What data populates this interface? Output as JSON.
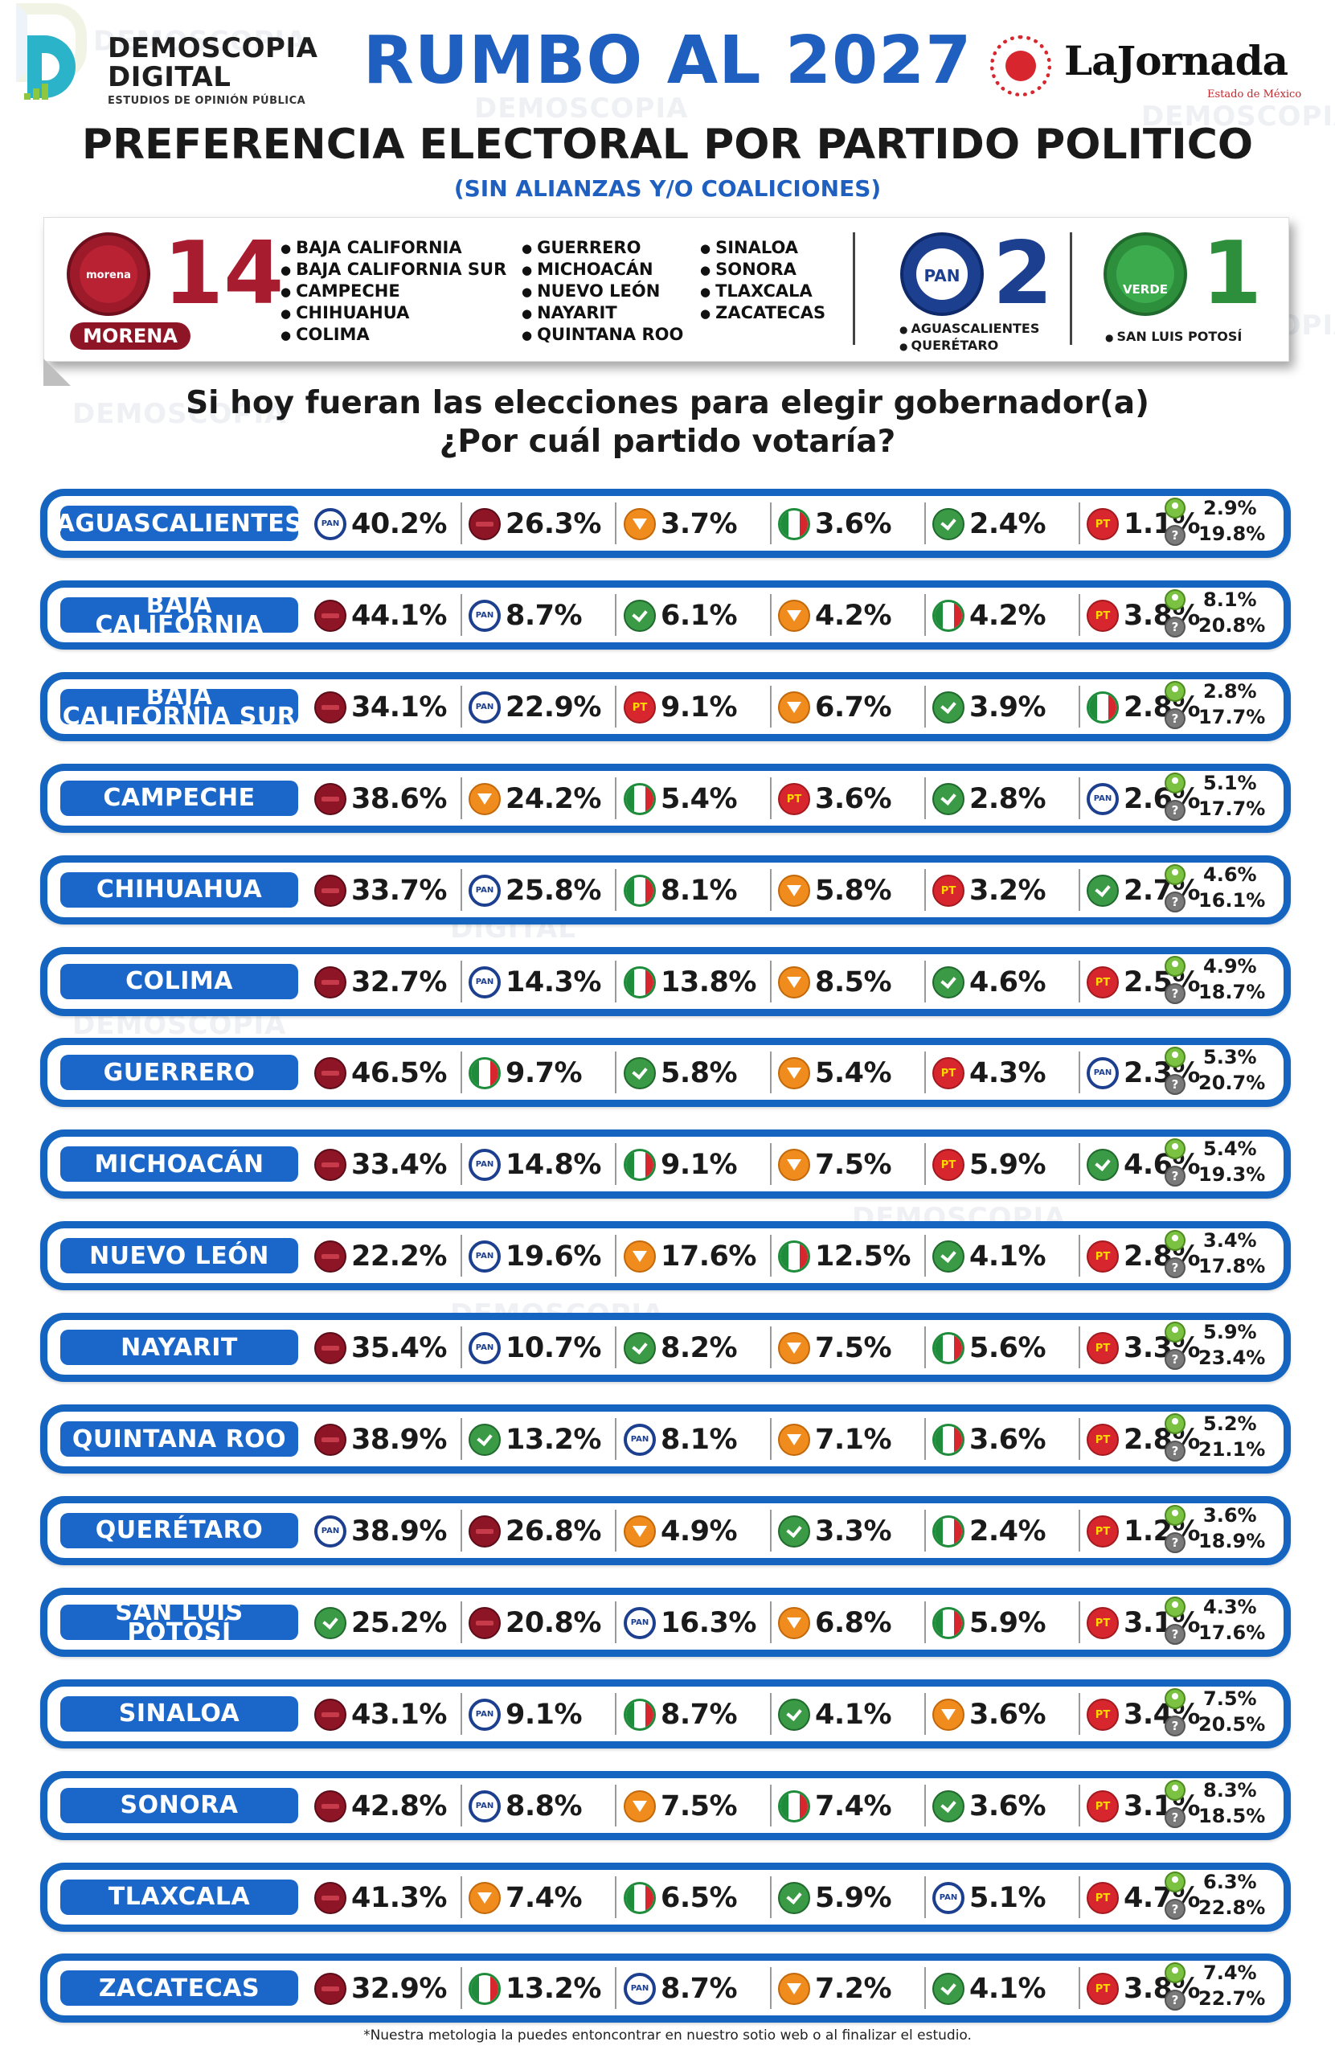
{
  "brand": {
    "name_line1": "DEMOSCOPIA",
    "name_line2": "DIGITAL",
    "tagline": "ESTUDIOS DE OPINIÓN PÚBLICA"
  },
  "watermark": {
    "line1": "DEMOSCOPIA",
    "line2": "DIGITAL",
    "line3": "ESTUDIOS DE OPINIÓN PÚBLICA"
  },
  "header": {
    "title": "RUMBO AL 2027",
    "subtitle": "PREFERENCIA ELECTORAL POR PARTIDO POLITICO",
    "note": "(SIN ALIANZAS Y/O COALICIONES)"
  },
  "publisher": {
    "name": "LaJornada",
    "edition": "Estado de México"
  },
  "summary": {
    "morena": {
      "badge": "morena",
      "count": "14",
      "label": "MORENA",
      "states_col1": [
        "BAJA CALIFORNIA",
        "BAJA CALIFORNIA SUR",
        "CAMPECHE",
        "CHIHUAHUA",
        "COLIMA"
      ],
      "states_col2": [
        "GUERRERO",
        "MICHOACÁN",
        "NUEVO LEÓN",
        "NAYARIT",
        "QUINTANA ROO"
      ],
      "states_col3": [
        "SINALOA",
        "SONORA",
        "TLAXCALA",
        "ZACATECAS"
      ]
    },
    "pan": {
      "badge": "PAN",
      "count": "2",
      "states": [
        "AGUASCALIENTES",
        "QUERÉTARO"
      ]
    },
    "verde": {
      "badge": "VERDE",
      "count": "1",
      "states": [
        "SAN LUIS POTOSÍ"
      ]
    }
  },
  "question": {
    "line1": "Si hoy fueran las elecciones para elegir gobernador(a)",
    "line2": "¿Por cuál partido votaría?"
  },
  "icons": {
    "morena": "morena-logo-icon",
    "pan": "pan-logo-icon",
    "mc": "movimiento-ciudadano-logo-icon",
    "pri": "pri-logo-icon",
    "verde": "verde-logo-icon",
    "pt": "pt-logo-icon",
    "independent": "independent-person-icon",
    "no_response": "question-mark-icon"
  },
  "colors": {
    "morena": "#8e1526",
    "pan": "#1d3f8f",
    "mc": "#f08c1d",
    "pri": "#1e8c3a",
    "verde": "#3a9a45",
    "pt": "#d7262d",
    "accent": "#1565c0",
    "title": "#1f5fbf"
  },
  "chart_data": {
    "type": "table",
    "columns": [
      "party_1",
      "party_2",
      "party_3",
      "party_4",
      "party_5",
      "party_6",
      "independent",
      "no_response"
    ],
    "rows": [
      {
        "state": "AGUASCALIENTES",
        "results": [
          [
            "pan",
            "40.2%"
          ],
          [
            "morena",
            "26.3%"
          ],
          [
            "mc",
            "3.7%"
          ],
          [
            "pri",
            "3.6%"
          ],
          [
            "verde",
            "2.4%"
          ],
          [
            "pt",
            "1.1%"
          ]
        ],
        "independent": "2.9%",
        "no_response": "19.8%"
      },
      {
        "state": "BAJA CALIFORNIA",
        "results": [
          [
            "morena",
            "44.1%"
          ],
          [
            "pan",
            "8.7%"
          ],
          [
            "verde",
            "6.1%"
          ],
          [
            "mc",
            "4.2%"
          ],
          [
            "pri",
            "4.2%"
          ],
          [
            "pt",
            "3.8%"
          ]
        ],
        "independent": "8.1%",
        "no_response": "20.8%"
      },
      {
        "state": "BAJA CALIFORNIA SUR",
        "results": [
          [
            "morena",
            "34.1%"
          ],
          [
            "pan",
            "22.9%"
          ],
          [
            "pt",
            "9.1%"
          ],
          [
            "mc",
            "6.7%"
          ],
          [
            "verde",
            "3.9%"
          ],
          [
            "pri",
            "2.8%"
          ]
        ],
        "independent": "2.8%",
        "no_response": "17.7%"
      },
      {
        "state": "CAMPECHE",
        "results": [
          [
            "morena",
            "38.6%"
          ],
          [
            "mc",
            "24.2%"
          ],
          [
            "pri",
            "5.4%"
          ],
          [
            "pt",
            "3.6%"
          ],
          [
            "verde",
            "2.8%"
          ],
          [
            "pan",
            "2.6%"
          ]
        ],
        "independent": "5.1%",
        "no_response": "17.7%"
      },
      {
        "state": "CHIHUAHUA",
        "results": [
          [
            "morena",
            "33.7%"
          ],
          [
            "pan",
            "25.8%"
          ],
          [
            "pri",
            "8.1%"
          ],
          [
            "mc",
            "5.8%"
          ],
          [
            "pt",
            "3.2%"
          ],
          [
            "verde",
            "2.7%"
          ]
        ],
        "independent": "4.6%",
        "no_response": "16.1%"
      },
      {
        "state": "COLIMA",
        "results": [
          [
            "morena",
            "32.7%"
          ],
          [
            "pan",
            "14.3%"
          ],
          [
            "pri",
            "13.8%"
          ],
          [
            "mc",
            "8.5%"
          ],
          [
            "verde",
            "4.6%"
          ],
          [
            "pt",
            "2.5%"
          ]
        ],
        "independent": "4.9%",
        "no_response": "18.7%"
      },
      {
        "state": "GUERRERO",
        "results": [
          [
            "morena",
            "46.5%"
          ],
          [
            "pri",
            "9.7%"
          ],
          [
            "verde",
            "5.8%"
          ],
          [
            "mc",
            "5.4%"
          ],
          [
            "pt",
            "4.3%"
          ],
          [
            "pan",
            "2.3%"
          ]
        ],
        "independent": "5.3%",
        "no_response": "20.7%"
      },
      {
        "state": "MICHOACÁN",
        "results": [
          [
            "morena",
            "33.4%"
          ],
          [
            "pan",
            "14.8%"
          ],
          [
            "pri",
            "9.1%"
          ],
          [
            "mc",
            "7.5%"
          ],
          [
            "pt",
            "5.9%"
          ],
          [
            "verde",
            "4.6%"
          ]
        ],
        "independent": "5.4%",
        "no_response": "19.3%"
      },
      {
        "state": "NUEVO LEÓN",
        "results": [
          [
            "morena",
            "22.2%"
          ],
          [
            "pan",
            "19.6%"
          ],
          [
            "mc",
            "17.6%"
          ],
          [
            "pri",
            "12.5%"
          ],
          [
            "verde",
            "4.1%"
          ],
          [
            "pt",
            "2.8%"
          ]
        ],
        "independent": "3.4%",
        "no_response": "17.8%"
      },
      {
        "state": "NAYARIT",
        "results": [
          [
            "morena",
            "35.4%"
          ],
          [
            "pan",
            "10.7%"
          ],
          [
            "verde",
            "8.2%"
          ],
          [
            "mc",
            "7.5%"
          ],
          [
            "pri",
            "5.6%"
          ],
          [
            "pt",
            "3.3%"
          ]
        ],
        "independent": "5.9%",
        "no_response": "23.4%"
      },
      {
        "state": "QUINTANA ROO",
        "results": [
          [
            "morena",
            "38.9%"
          ],
          [
            "verde",
            "13.2%"
          ],
          [
            "pan",
            "8.1%"
          ],
          [
            "mc",
            "7.1%"
          ],
          [
            "pri",
            "3.6%"
          ],
          [
            "pt",
            "2.8%"
          ]
        ],
        "independent": "5.2%",
        "no_response": "21.1%"
      },
      {
        "state": "QUERÉTARO",
        "results": [
          [
            "pan",
            "38.9%"
          ],
          [
            "morena",
            "26.8%"
          ],
          [
            "mc",
            "4.9%"
          ],
          [
            "verde",
            "3.3%"
          ],
          [
            "pri",
            "2.4%"
          ],
          [
            "pt",
            "1.2%"
          ]
        ],
        "independent": "3.6%",
        "no_response": "18.9%"
      },
      {
        "state": "SAN LUIS POTOSÍ",
        "results": [
          [
            "verde",
            "25.2%"
          ],
          [
            "morena",
            "20.8%"
          ],
          [
            "pan",
            "16.3%"
          ],
          [
            "mc",
            "6.8%"
          ],
          [
            "pri",
            "5.9%"
          ],
          [
            "pt",
            "3.1%"
          ]
        ],
        "independent": "4.3%",
        "no_response": "17.6%"
      },
      {
        "state": "SINALOA",
        "results": [
          [
            "morena",
            "43.1%"
          ],
          [
            "pan",
            "9.1%"
          ],
          [
            "pri",
            "8.7%"
          ],
          [
            "verde",
            "4.1%"
          ],
          [
            "mc",
            "3.6%"
          ],
          [
            "pt",
            "3.4%"
          ]
        ],
        "independent": "7.5%",
        "no_response": "20.5%"
      },
      {
        "state": "SONORA",
        "results": [
          [
            "morena",
            "42.8%"
          ],
          [
            "pan",
            "8.8%"
          ],
          [
            "mc",
            "7.5%"
          ],
          [
            "pri",
            "7.4%"
          ],
          [
            "verde",
            "3.6%"
          ],
          [
            "pt",
            "3.1%"
          ]
        ],
        "independent": "8.3%",
        "no_response": "18.5%"
      },
      {
        "state": "TLAXCALA",
        "results": [
          [
            "morena",
            "41.3%"
          ],
          [
            "mc",
            "7.4%"
          ],
          [
            "pri",
            "6.5%"
          ],
          [
            "verde",
            "5.9%"
          ],
          [
            "pan",
            "5.1%"
          ],
          [
            "pt",
            "4.7%"
          ]
        ],
        "independent": "6.3%",
        "no_response": "22.8%"
      },
      {
        "state": "ZACATECAS",
        "results": [
          [
            "morena",
            "32.9%"
          ],
          [
            "pri",
            "13.2%"
          ],
          [
            "pan",
            "8.7%"
          ],
          [
            "mc",
            "7.2%"
          ],
          [
            "verde",
            "4.1%"
          ],
          [
            "pt",
            "3.8%"
          ]
        ],
        "independent": "7.4%",
        "no_response": "22.7%"
      }
    ]
  },
  "footnote": "*Nuestra metologia la puedes entoncontrar en nuestro sotio web o al finalizar el estudio."
}
